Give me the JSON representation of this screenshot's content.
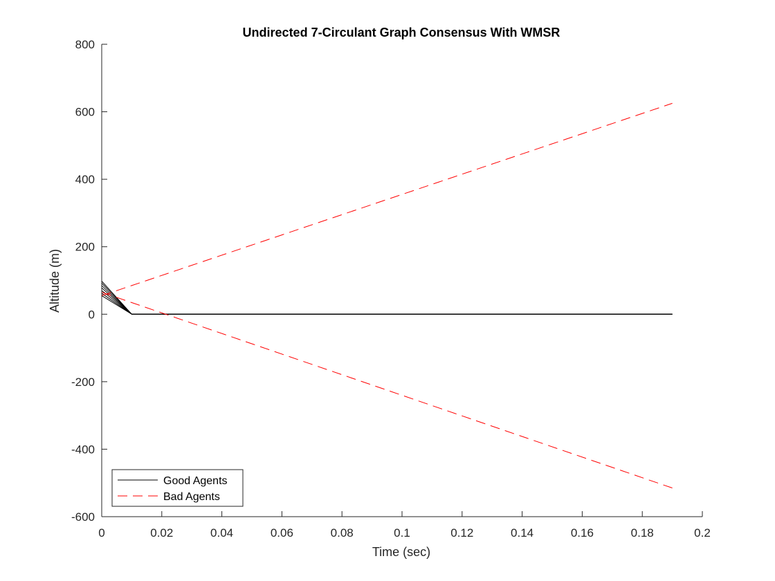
{
  "chart_data": {
    "type": "line",
    "title": "Undirected 7-Circulant Graph Consensus With WMSR",
    "xlabel": "Time (sec)",
    "ylabel": "Altitude (m)",
    "xlim": [
      0,
      0.2
    ],
    "ylim": [
      -600,
      800
    ],
    "xticks": [
      0,
      0.02,
      0.04,
      0.06,
      0.08,
      0.1,
      0.12,
      0.14,
      0.16,
      0.18,
      0.2
    ],
    "xtick_labels": [
      "0",
      "0.02",
      "0.04",
      "0.06",
      "0.08",
      "0.1",
      "0.12",
      "0.14",
      "0.16",
      "0.18",
      "0.2"
    ],
    "yticks": [
      -600,
      -400,
      -200,
      0,
      200,
      400,
      600,
      800
    ],
    "ytick_labels": [
      "-600",
      "-400",
      "-200",
      "0",
      "200",
      "400",
      "600",
      "800"
    ],
    "grid": false,
    "legend": {
      "position": "bottom-left",
      "entries": [
        {
          "label": "Good Agents",
          "color": "#000000",
          "style": "solid"
        },
        {
          "label": "Bad Agents",
          "color": "#ff0000",
          "style": "dashed"
        }
      ]
    },
    "series": [
      {
        "group": "good",
        "x": [
          0,
          0.01,
          0.19
        ],
        "y": [
          98,
          0,
          0
        ]
      },
      {
        "group": "good",
        "x": [
          0,
          0.01,
          0.19
        ],
        "y": [
          92,
          0,
          0
        ]
      },
      {
        "group": "good",
        "x": [
          0,
          0.01,
          0.19
        ],
        "y": [
          85,
          0,
          0
        ]
      },
      {
        "group": "good",
        "x": [
          0,
          0.01,
          0.19
        ],
        "y": [
          78,
          0,
          0
        ]
      },
      {
        "group": "good",
        "x": [
          0,
          0.01,
          0.19
        ],
        "y": [
          70,
          0,
          0
        ]
      },
      {
        "group": "good",
        "x": [
          0,
          0.01,
          0.19
        ],
        "y": [
          62,
          0,
          0
        ]
      },
      {
        "group": "good",
        "x": [
          0,
          0.01,
          0.19
        ],
        "y": [
          55,
          0,
          0
        ]
      },
      {
        "group": "bad",
        "x": [
          0,
          0.19
        ],
        "y": [
          55,
          625
        ]
      },
      {
        "group": "bad",
        "x": [
          0,
          0.19
        ],
        "y": [
          65,
          -515
        ]
      }
    ],
    "colors": {
      "good": "#000000",
      "bad": "#ff0000",
      "axis": "#262626"
    }
  }
}
